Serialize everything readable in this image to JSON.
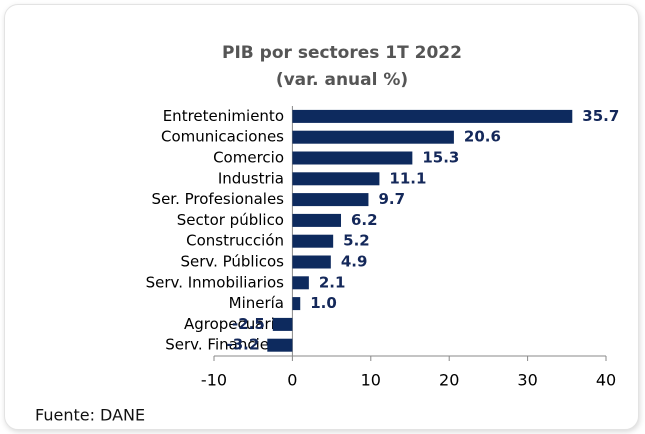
{
  "chart_data": {
    "type": "bar",
    "orientation": "horizontal",
    "title": "PIB por sectores 1T 2022",
    "subtitle": "(var. anual %)",
    "categories": [
      "Entretenimiento",
      "Comunicaciones",
      "Comercio",
      "Industria",
      "Ser. Profesionales",
      "Sector público",
      "Construcción",
      "Serv. Públicos",
      "Serv. Inmobiliarios",
      "Minería",
      "Agropecuario",
      "Serv. Financiero"
    ],
    "values": [
      35.7,
      20.6,
      15.3,
      11.1,
      9.7,
      6.2,
      5.2,
      4.9,
      2.1,
      1,
      -2.5,
      -3.2
    ],
    "value_labels": [
      "35.7",
      "20.6",
      "15.3",
      "11.1",
      "9.7",
      "6.2",
      "5.2",
      "4.9",
      "2.1",
      "1.0",
      "-2.5",
      "-3.2"
    ],
    "color": "#0d2a5e",
    "xlim": [
      -10,
      40
    ],
    "xticks": [
      -10,
      0,
      10,
      20,
      30,
      40
    ],
    "note": "Fuente: DANE"
  }
}
